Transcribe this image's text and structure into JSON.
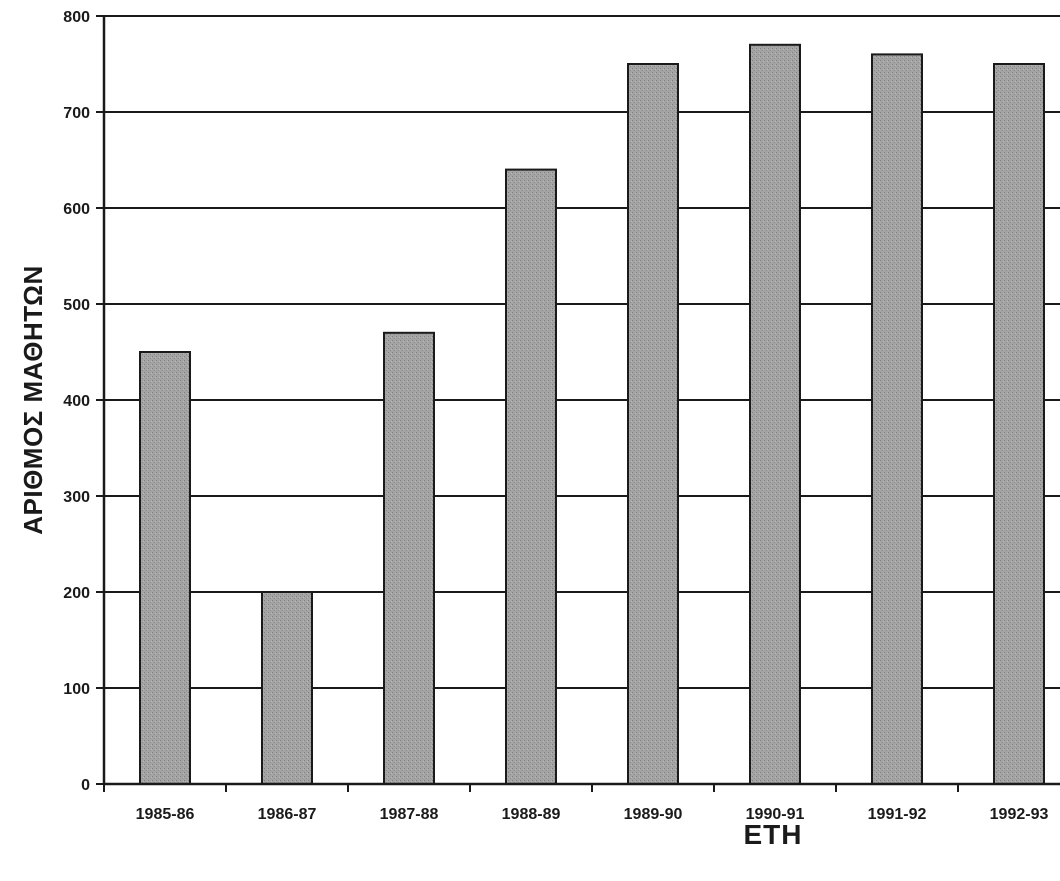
{
  "chart_data": {
    "type": "bar",
    "title": "",
    "xlabel": "ΕΤΗ",
    "ylabel": "ΑΡΙΘΜΟΣ ΜΑΘΗΤΩΝ",
    "categories": [
      "1985-86",
      "1986-87",
      "1987-88",
      "1988-89",
      "1989-90",
      "1990-91",
      "1991-92",
      "1992-93"
    ],
    "values": [
      450,
      200,
      470,
      640,
      750,
      770,
      760,
      750
    ],
    "ylim": [
      0,
      800
    ],
    "yticks": [
      0,
      100,
      200,
      300,
      400,
      500,
      600,
      700,
      800
    ],
    "grid": true,
    "legend": "none",
    "colors": {
      "bar_fill": "#9b9b9b",
      "bar_edge": "#1a1a1a",
      "grid": "#1a1a1a"
    }
  }
}
